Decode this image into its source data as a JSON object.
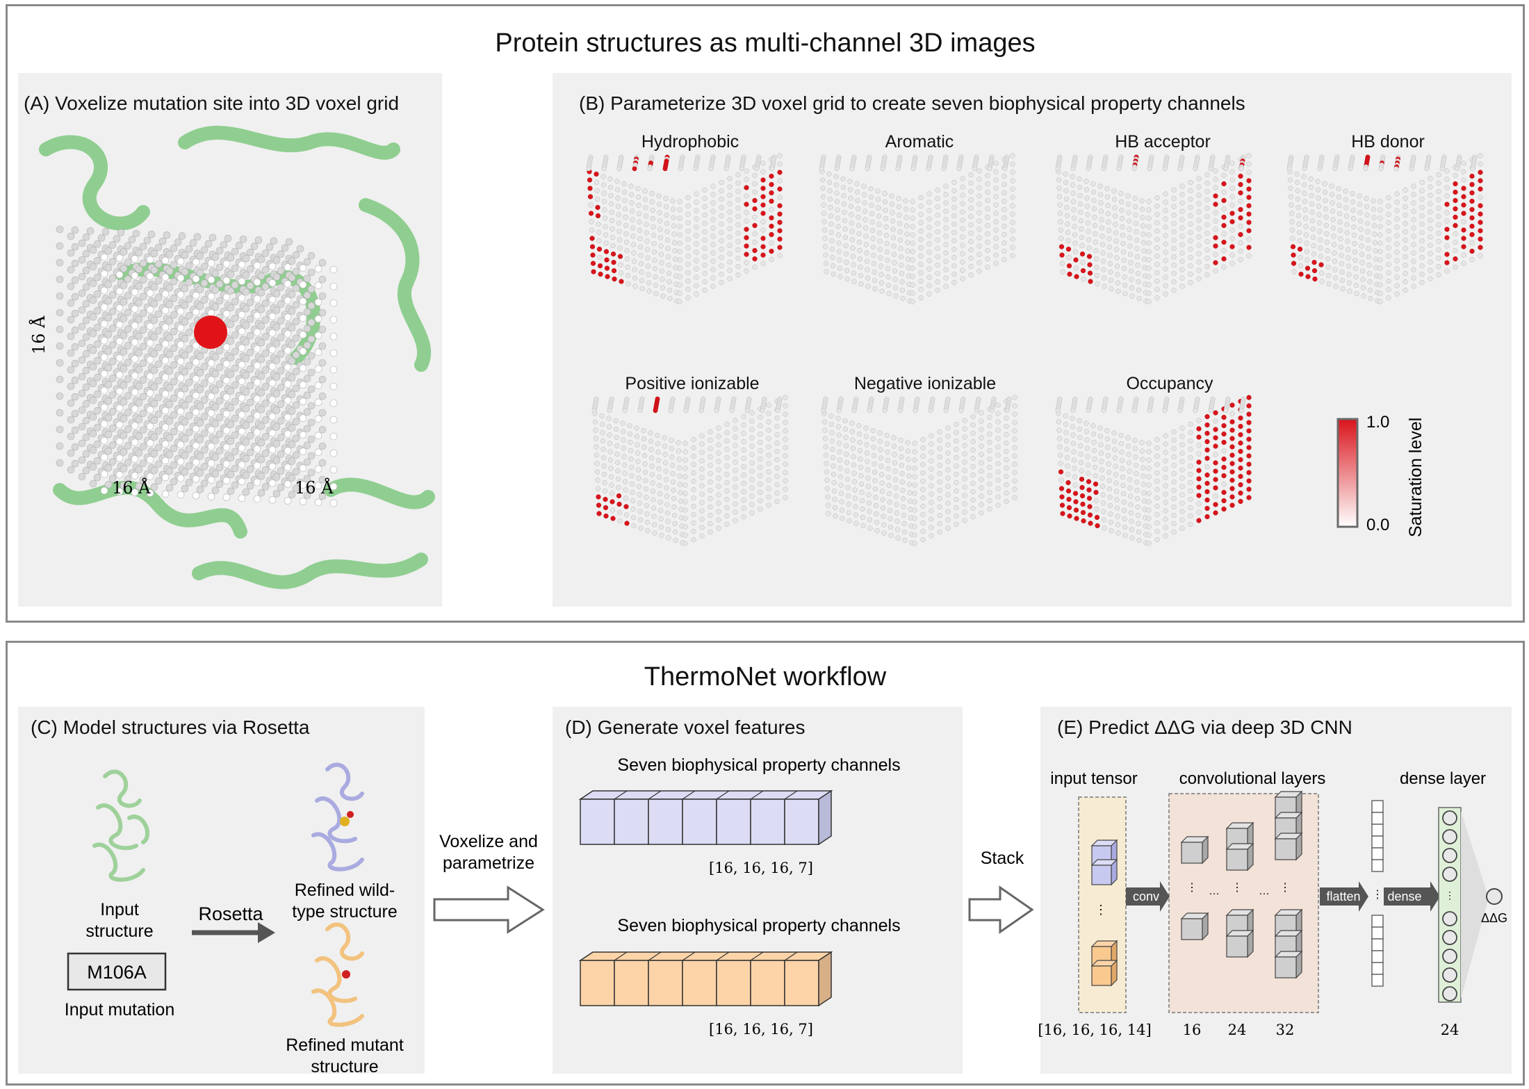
{
  "top_section": {
    "title": "Protein structures as multi-channel 3D images",
    "panel_a": {
      "title": "(A)  Voxelize mutation site into 3D voxel grid",
      "dim_left": "16 Å",
      "dim_bottom_left": "16 Å",
      "dim_bottom_right": "16 Å"
    },
    "panel_b": {
      "title": "(B)  Parameterize 3D voxel grid to create seven biophysical property channels",
      "channels": [
        "Hydrophobic",
        "Aromatic",
        "HB acceptor",
        "HB donor",
        "Positive ionizable",
        "Negative ionizable",
        "Occupancy"
      ],
      "colorbar": {
        "max_label": "1.0",
        "min_label": "0.0",
        "title": "Saturation level",
        "high_color": "#d9141c",
        "low_color": "#ffffff"
      }
    }
  },
  "bottom_section": {
    "title": "ThermoNet workflow",
    "panel_c": {
      "title": "(C)  Model structures via Rosetta",
      "input_structure": [
        "Input",
        "structure"
      ],
      "mutation": "M106A",
      "input_mutation": "Input mutation",
      "arrow_label": "Rosetta",
      "wild_type": [
        "Refined wild-",
        "type structure"
      ],
      "mutant": [
        "Refined mutant",
        "structure"
      ],
      "wild_color": "#a9abe0",
      "mutant_color": "#f2c27e",
      "input_color": "#9fd19b"
    },
    "between_cd": [
      "Voxelize and",
      "parametrize"
    ],
    "panel_d": {
      "title": "(D)  Generate voxel features",
      "top_label": "Seven biophysical property channels",
      "top_shape": "[16, 16, 16, 7]",
      "bottom_label": "Seven biophysical property channels",
      "bottom_shape": "[16, 16, 16, 7]",
      "top_color": "#dcdcf5",
      "bottom_color": "#fdd4a8"
    },
    "between_de": "Stack",
    "panel_e": {
      "title": "(E)  Predict ΔΔG via deep 3D CNN",
      "input_tensor": "input tensor",
      "conv_layers": "convolutional layers",
      "dense_layer": "dense layer",
      "arrow_conv": "conv",
      "arrow_flatten": "flatten",
      "arrow_dense": "dense",
      "output": "ΔΔG",
      "input_shape": "[16, 16, 16, 14]",
      "filters": [
        "16",
        "24",
        "32"
      ],
      "dense_units": "24"
    }
  }
}
